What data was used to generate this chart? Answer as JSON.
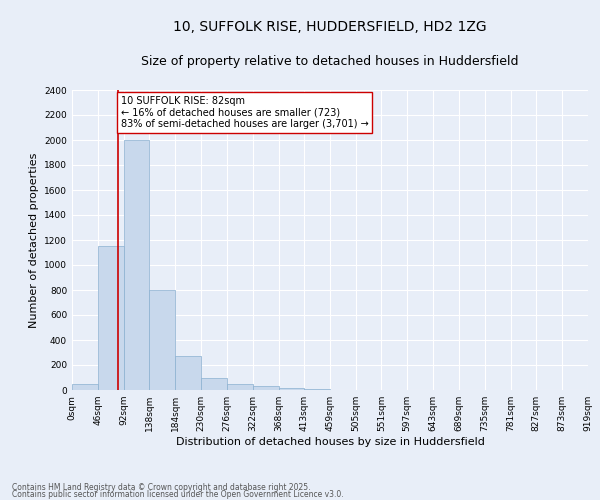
{
  "title": "10, SUFFOLK RISE, HUDDERSFIELD, HD2 1ZG",
  "subtitle": "Size of property relative to detached houses in Huddersfield",
  "xlabel": "Distribution of detached houses by size in Huddersfield",
  "ylabel": "Number of detached properties",
  "footer1": "Contains HM Land Registry data © Crown copyright and database right 2025.",
  "footer2": "Contains public sector information licensed under the Open Government Licence v3.0.",
  "bar_color": "#c8d8ec",
  "bar_edge_color": "#8ab0d0",
  "background_color": "#e8eef8",
  "grid_color": "#ffffff",
  "vline_color": "#cc0000",
  "annotation_text": "10 SUFFOLK RISE: 82sqm\n← 16% of detached houses are smaller (723)\n83% of semi-detached houses are larger (3,701) →",
  "property_sqm": 82,
  "bin_edges": [
    0,
    46,
    92,
    138,
    184,
    230,
    276,
    322,
    368,
    413,
    459,
    505,
    551,
    597,
    643,
    689,
    735,
    781,
    827,
    873,
    919
  ],
  "bin_counts": [
    50,
    1150,
    2000,
    800,
    270,
    100,
    50,
    30,
    15,
    5,
    2,
    0,
    0,
    0,
    0,
    0,
    0,
    0,
    0,
    0
  ],
  "ylim": [
    0,
    2400
  ],
  "yticks": [
    0,
    200,
    400,
    600,
    800,
    1000,
    1200,
    1400,
    1600,
    1800,
    2000,
    2200,
    2400
  ],
  "title_fontsize": 10,
  "subtitle_fontsize": 9,
  "tick_label_fontsize": 6.5,
  "axis_label_fontsize": 8,
  "footer_fontsize": 5.5,
  "annotation_fontsize": 7
}
